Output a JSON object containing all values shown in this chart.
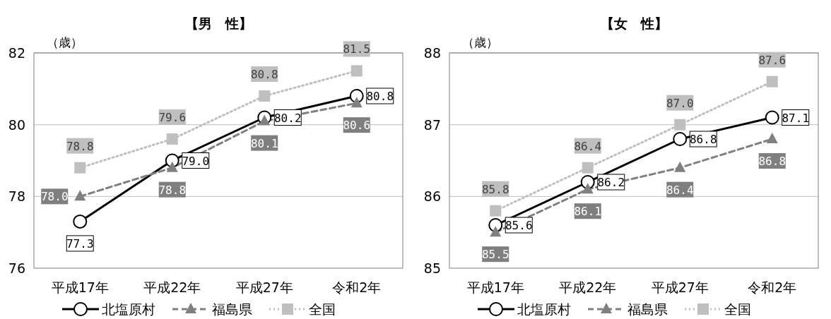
{
  "chart_data": [
    {
      "type": "line",
      "title": "【男　性】",
      "ylabel": "（歳）",
      "categories": [
        "平成17年",
        "平成22年",
        "平成27年",
        "令和2年"
      ],
      "ylim": [
        76,
        82
      ],
      "yticks": [
        76,
        78,
        80,
        82
      ],
      "grid": "y",
      "legend": "bottom",
      "series": [
        {
          "name": "北塩原村",
          "color": "#000000",
          "marker": "circle",
          "line_style": "solid",
          "values": [
            77.3,
            79.0,
            80.2,
            80.8
          ],
          "value_labels": [
            "77.3",
            "79.0",
            "80.2",
            "80.8"
          ]
        },
        {
          "name": "福島県",
          "color": "#808080",
          "marker": "triangle",
          "line_style": "dashed",
          "values": [
            78.0,
            78.8,
            80.1,
            80.6
          ],
          "value_labels": [
            "78.0",
            "78.8",
            "80.1",
            "80.6"
          ]
        },
        {
          "name": "全国",
          "color": "#bfbfbf",
          "marker": "square",
          "line_style": "dotted",
          "values": [
            78.8,
            79.6,
            80.8,
            81.5
          ],
          "value_labels": [
            "78.8",
            "79.6",
            "80.8",
            "81.5"
          ]
        }
      ]
    },
    {
      "type": "line",
      "title": "【女　性】",
      "ylabel": "（歳）",
      "categories": [
        "平成17年",
        "平成22年",
        "平成27年",
        "令和2年"
      ],
      "ylim": [
        85,
        88
      ],
      "yticks": [
        85,
        86,
        87,
        88
      ],
      "grid": "y",
      "legend": "bottom",
      "series": [
        {
          "name": "北塩原村",
          "color": "#000000",
          "marker": "circle",
          "line_style": "solid",
          "values": [
            85.6,
            86.2,
            86.8,
            87.1
          ],
          "value_labels": [
            "85.6",
            "86.2",
            "86.8",
            "87.1"
          ]
        },
        {
          "name": "福島県",
          "color": "#808080",
          "marker": "triangle",
          "line_style": "dashed",
          "values": [
            85.5,
            86.1,
            86.4,
            86.8
          ],
          "value_labels": [
            "85.5",
            "86.1",
            "86.4",
            "86.8"
          ]
        },
        {
          "name": "全国",
          "color": "#bfbfbf",
          "marker": "square",
          "line_style": "dotted",
          "values": [
            85.8,
            86.4,
            87.0,
            87.6
          ],
          "value_labels": [
            "85.8",
            "86.4",
            "87.0",
            "87.6"
          ]
        }
      ]
    }
  ]
}
